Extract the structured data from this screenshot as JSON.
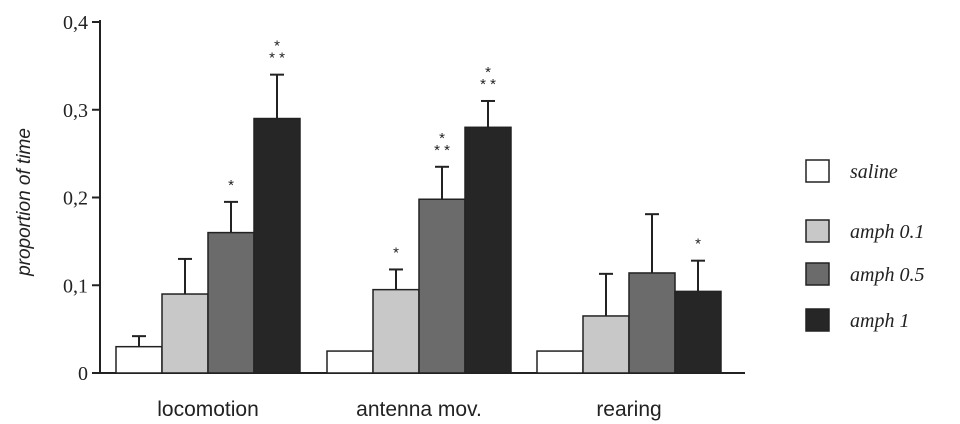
{
  "chart_data": {
    "type": "bar",
    "ylabel": "proportion of time",
    "ylim": [
      0,
      0.4
    ],
    "yticks": [
      {
        "value": 0,
        "label": "0"
      },
      {
        "value": 0.1,
        "label": "0,1"
      },
      {
        "value": 0.2,
        "label": "0,2"
      },
      {
        "value": 0.3,
        "label": "0,3"
      },
      {
        "value": 0.4,
        "label": "0,4"
      }
    ],
    "categories": [
      "locomotion",
      "antenna mov.",
      "rearing"
    ],
    "legend_position": "right",
    "series": [
      {
        "name": "saline",
        "color": "#ffffff",
        "values": [
          0.03,
          0.025,
          0.025
        ],
        "errors": [
          0.012,
          0,
          0
        ],
        "significance": [
          "",
          "",
          ""
        ]
      },
      {
        "name": "amph 0.1",
        "color": "#c8c8c8",
        "values": [
          0.09,
          0.095,
          0.065
        ],
        "errors": [
          0.04,
          0.023,
          0.048
        ],
        "significance": [
          "",
          "*",
          ""
        ]
      },
      {
        "name": "amph 0.5",
        "color": "#6b6b6b",
        "values": [
          0.16,
          0.198,
          0.114
        ],
        "errors": [
          0.035,
          0.037,
          0.067
        ],
        "significance": [
          "*",
          "* *",
          ""
        ]
      },
      {
        "name": "amph 1",
        "color": "#262626",
        "values": [
          0.29,
          0.28,
          0.093
        ],
        "errors": [
          0.05,
          0.03,
          0.035
        ],
        "significance": [
          "* *",
          "* *",
          "*"
        ]
      }
    ]
  }
}
